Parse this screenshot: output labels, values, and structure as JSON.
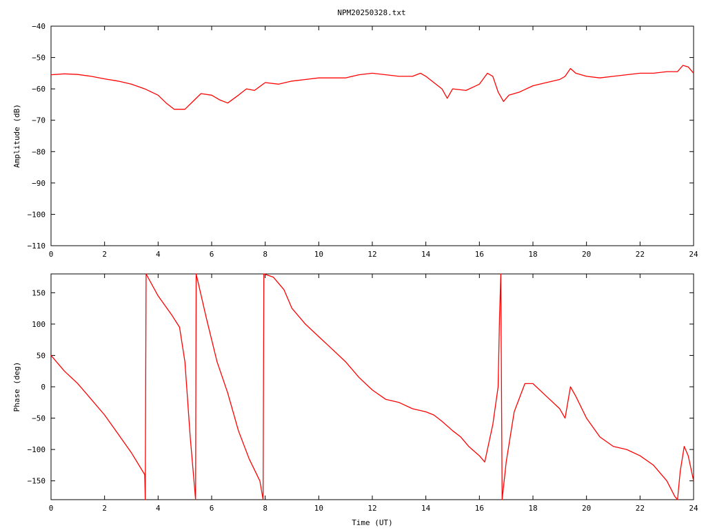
{
  "title": "NPM20250328.txt",
  "chart_data": [
    {
      "type": "line",
      "title": "NPM20250328.txt",
      "xlabel": "",
      "ylabel": "Amplitude (dB)",
      "xlim": [
        0,
        24
      ],
      "ylim": [
        -110,
        -40
      ],
      "xticks": [
        0,
        2,
        4,
        6,
        8,
        10,
        12,
        14,
        16,
        18,
        20,
        22,
        24
      ],
      "yticks": [
        -110,
        -100,
        -90,
        -80,
        -70,
        -60,
        -50,
        -40
      ],
      "grid": false,
      "color": "#ff0000",
      "series": [
        {
          "x": [
            0,
            0.5,
            1,
            1.5,
            2,
            2.5,
            3,
            3.5,
            4,
            4.3,
            4.6,
            5,
            5.3,
            5.6,
            6,
            6.3,
            6.6,
            7,
            7.3,
            7.6,
            8,
            8.5,
            9,
            9.5,
            10,
            10.5,
            11,
            11.5,
            12,
            12.5,
            13,
            13.5,
            13.8,
            14,
            14.3,
            14.6,
            14.8,
            15,
            15.5,
            16,
            16.3,
            16.5,
            16.7,
            16.9,
            17.1,
            17.5,
            18,
            18.5,
            19,
            19.2,
            19.4,
            19.6,
            20,
            20.5,
            21,
            21.5,
            22,
            22.5,
            23,
            23.4,
            23.6,
            23.8,
            24
          ],
          "y": [
            -55.5,
            -55.2,
            -55.4,
            -56,
            -56.8,
            -57.5,
            -58.5,
            -60,
            -62,
            -64.5,
            -66.5,
            -66.5,
            -64,
            -61.5,
            -62,
            -63.5,
            -64.5,
            -62,
            -60,
            -60.5,
            -58,
            -58.5,
            -57.5,
            -57,
            -56.5,
            -56.5,
            -56.5,
            -55.5,
            -55,
            -55.5,
            -56,
            -56,
            -55,
            -56,
            -58,
            -60,
            -63,
            -60,
            -60.5,
            -58.5,
            -55,
            -56,
            -61,
            -64,
            -62,
            -61,
            -59,
            -58,
            -57,
            -56,
            -53.5,
            -55,
            -56,
            -56.5,
            -56,
            -55.5,
            -55,
            -55,
            -54.5,
            -54.5,
            -52.5,
            -53,
            -55
          ]
        }
      ]
    },
    {
      "type": "line",
      "title": "",
      "xlabel": "Time (UT)",
      "ylabel": "Phase (deg)",
      "xlim": [
        0,
        24
      ],
      "ylim": [
        -180,
        180
      ],
      "xticks": [
        0,
        2,
        4,
        6,
        8,
        10,
        12,
        14,
        16,
        18,
        20,
        22,
        24
      ],
      "yticks": [
        -150,
        -100,
        -50,
        0,
        50,
        100,
        150
      ],
      "grid": false,
      "color": "#ff0000",
      "series": [
        {
          "x": [
            0,
            0.5,
            1,
            1.5,
            2,
            2.5,
            3,
            3.5,
            3.52,
            3.55,
            4,
            4.5,
            4.8,
            5,
            5.2,
            5.4,
            5.42,
            5.45,
            5.8,
            6.2,
            6.6,
            7,
            7.4,
            7.8,
            7.92,
            7.95,
            8.3,
            8.7,
            9,
            9.5,
            10,
            10.5,
            11,
            11.5,
            12,
            12.5,
            13,
            13.5,
            14,
            14.3,
            14.6,
            15,
            15.3,
            15.6,
            16,
            16.2,
            16.5,
            16.7,
            16.75,
            16.8,
            16.85,
            17,
            17.3,
            17.7,
            18,
            18.5,
            19,
            19.2,
            19.4,
            19.6,
            20,
            20.5,
            21,
            21.5,
            22,
            22.5,
            23,
            23.3,
            23.4,
            23.5,
            23.65,
            23.8,
            24
          ],
          "y": [
            50,
            25,
            5,
            -20,
            -45,
            -75,
            -105,
            -140,
            -180,
            180,
            145,
            115,
            95,
            40,
            -80,
            -180,
            180,
            175,
            110,
            40,
            -10,
            -70,
            -115,
            -150,
            -180,
            180,
            175,
            155,
            125,
            100,
            80,
            60,
            40,
            15,
            -5,
            -20,
            -25,
            -35,
            -40,
            -45,
            -55,
            -70,
            -80,
            -95,
            -110,
            -120,
            -60,
            0,
            110,
            180,
            -180,
            -120,
            -40,
            5,
            5,
            -15,
            -35,
            -50,
            0,
            -15,
            -50,
            -80,
            -95,
            -100,
            -110,
            -125,
            -150,
            -175,
            -180,
            -135,
            -95,
            -110,
            -150
          ]
        }
      ]
    }
  ]
}
